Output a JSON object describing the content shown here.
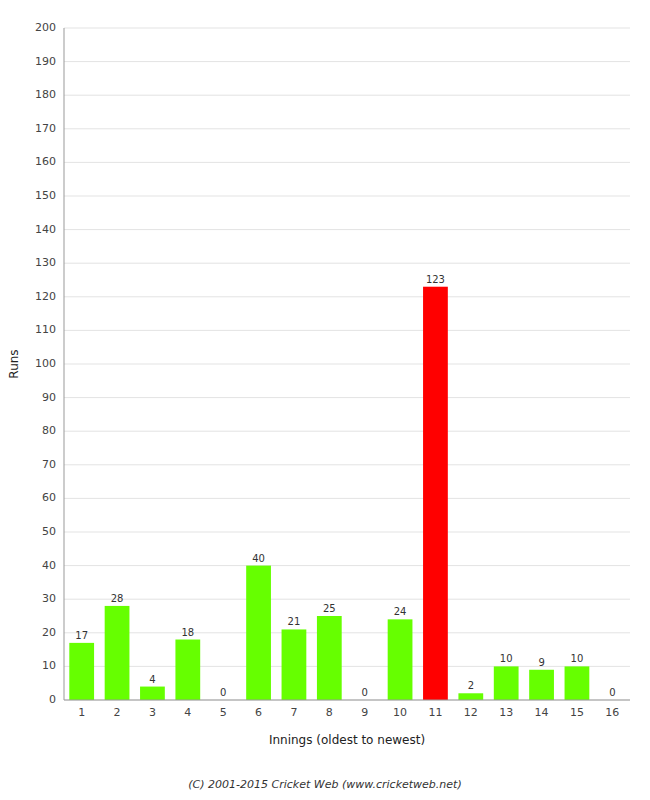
{
  "chart_data": {
    "type": "bar",
    "categories": [
      "1",
      "2",
      "3",
      "4",
      "5",
      "6",
      "7",
      "8",
      "9",
      "10",
      "11",
      "12",
      "13",
      "14",
      "15",
      "16"
    ],
    "values": [
      17,
      28,
      4,
      18,
      0,
      40,
      21,
      25,
      0,
      24,
      123,
      2,
      10,
      9,
      10,
      0
    ],
    "colors": [
      "#66ff00",
      "#66ff00",
      "#66ff00",
      "#66ff00",
      "#66ff00",
      "#66ff00",
      "#66ff00",
      "#66ff00",
      "#66ff00",
      "#66ff00",
      "#ff0000",
      "#66ff00",
      "#66ff00",
      "#66ff00",
      "#66ff00",
      "#66ff00"
    ],
    "x_label": "Innings (oldest to newest)",
    "y_label": "Runs",
    "ylim": [
      0,
      200
    ],
    "yticks": [
      0,
      10,
      20,
      30,
      40,
      50,
      60,
      70,
      80,
      90,
      100,
      110,
      120,
      130,
      140,
      150,
      160,
      170,
      180,
      190,
      200
    ],
    "grid": true,
    "data_labels": true,
    "annotations": [
      "(C) 2001-2015 Cricket Web (www.cricketweb.net)"
    ]
  }
}
